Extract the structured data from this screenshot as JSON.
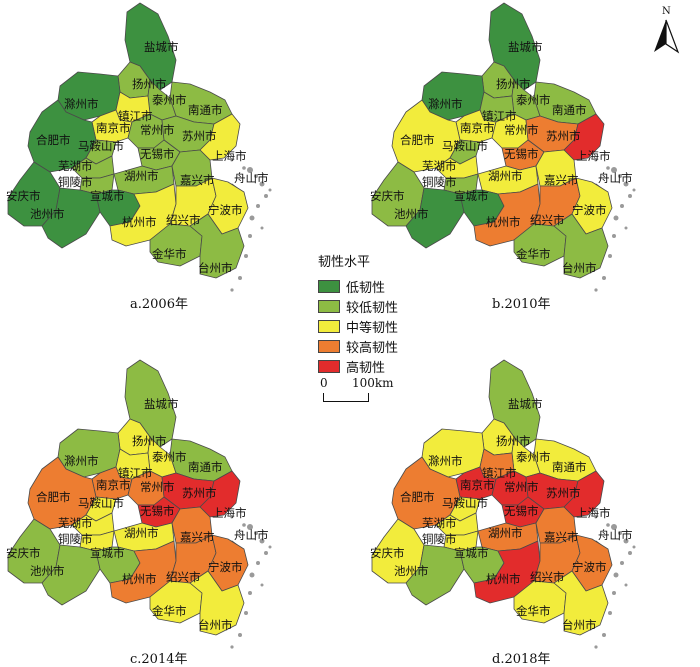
{
  "colors": {
    "low": "#3d9140",
    "lower": "#8dbb44",
    "medium": "#f2ec3c",
    "higher": "#ed7d31",
    "high": "#e22c2c",
    "border": "#4a4a4a",
    "sea_islands": "#9a9a9a"
  },
  "legend": {
    "title": "韧性水平",
    "items": [
      {
        "key": "low",
        "label": "低韧性"
      },
      {
        "key": "lower",
        "label": "较低韧性"
      },
      {
        "key": "medium",
        "label": "中等韧性"
      },
      {
        "key": "higher",
        "label": "较高韧性"
      },
      {
        "key": "high",
        "label": "高韧性"
      }
    ]
  },
  "scale": {
    "zero": "0",
    "max": "100km"
  },
  "north_label": "N",
  "cities": [
    "盐城市",
    "扬州市",
    "滁州市",
    "泰州市",
    "南通市",
    "镇江市",
    "南京市",
    "常州市",
    "苏州市",
    "合肥市",
    "马鞍山市",
    "无锡市",
    "上海市",
    "芜湖市",
    "铜陵市",
    "湖州市",
    "嘉兴市",
    "舟山市",
    "安庆市",
    "池州市",
    "宣城市",
    "杭州市",
    "绍兴市",
    "宁波市",
    "金华市",
    "台州市"
  ],
  "panels": [
    {
      "caption": "a.2006年",
      "levels": {
        "盐城市": "low",
        "扬州市": "lower",
        "滁州市": "low",
        "泰州市": "lower",
        "南通市": "lower",
        "镇江市": "medium",
        "南京市": "medium",
        "常州市": "lower",
        "苏州市": "lower",
        "合肥市": "low",
        "马鞍山市": "lower",
        "无锡市": "lower",
        "上海市": "medium",
        "芜湖市": "lower",
        "铜陵市": "lower",
        "湖州市": "lower",
        "嘉兴市": "lower",
        "舟山市": "lower",
        "安庆市": "low",
        "池州市": "low",
        "宣城市": "low",
        "杭州市": "medium",
        "绍兴市": "medium",
        "宁波市": "medium",
        "金华市": "lower",
        "台州市": "lower"
      }
    },
    {
      "caption": "b.2010年",
      "levels": {
        "盐城市": "low",
        "扬州市": "lower",
        "滁州市": "low",
        "泰州市": "lower",
        "南通市": "lower",
        "镇江市": "lower",
        "南京市": "medium",
        "常州市": "medium",
        "苏州市": "higher",
        "合肥市": "medium",
        "马鞍山市": "lower",
        "无锡市": "higher",
        "上海市": "high",
        "芜湖市": "medium",
        "铜陵市": "lower",
        "湖州市": "medium",
        "嘉兴市": "medium",
        "舟山市": "lower",
        "安庆市": "lower",
        "池州市": "low",
        "宣城市": "low",
        "杭州市": "higher",
        "绍兴市": "higher",
        "宁波市": "medium",
        "金华市": "lower",
        "台州市": "lower"
      }
    },
    {
      "caption": "c.2014年",
      "levels": {
        "盐城市": "lower",
        "扬州市": "medium",
        "滁州市": "lower",
        "泰州市": "medium",
        "南通市": "lower",
        "镇江市": "medium",
        "南京市": "higher",
        "常州市": "higher",
        "苏州市": "high",
        "合肥市": "higher",
        "马鞍山市": "medium",
        "无锡市": "high",
        "上海市": "high",
        "芜湖市": "medium",
        "铜陵市": "medium",
        "湖州市": "medium",
        "嘉兴市": "higher",
        "舟山市": "lower",
        "安庆市": "lower",
        "池州市": "lower",
        "宣城市": "lower",
        "杭州市": "higher",
        "绍兴市": "higher",
        "宁波市": "higher",
        "金华市": "medium",
        "台州市": "medium"
      }
    },
    {
      "caption": "d.2018年",
      "levels": {
        "盐城市": "lower",
        "扬州市": "medium",
        "滁州市": "medium",
        "泰州市": "medium",
        "南通市": "medium",
        "镇江市": "higher",
        "南京市": "high",
        "常州市": "high",
        "苏州市": "high",
        "合肥市": "higher",
        "马鞍山市": "medium",
        "无锡市": "high",
        "上海市": "high",
        "芜湖市": "medium",
        "铜陵市": "medium",
        "湖州市": "higher",
        "嘉兴市": "higher",
        "舟山市": "medium",
        "安庆市": "medium",
        "池州市": "lower",
        "宣城市": "lower",
        "杭州市": "high",
        "绍兴市": "higher",
        "宁波市": "higher",
        "金华市": "medium",
        "台州市": "medium"
      }
    }
  ]
}
